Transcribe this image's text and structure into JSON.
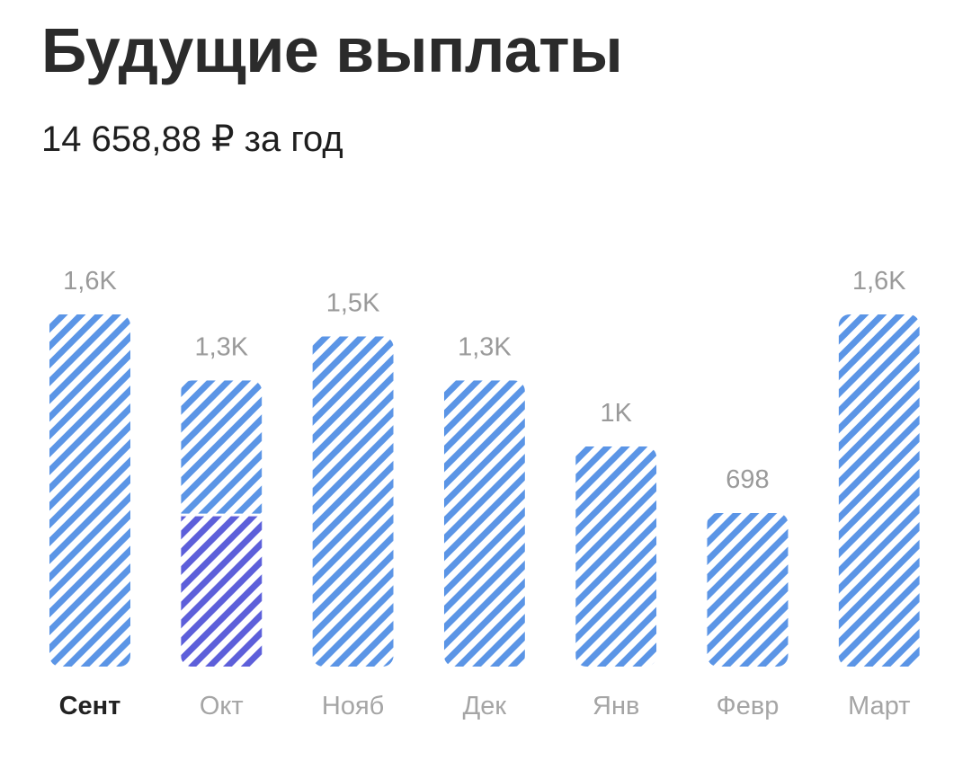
{
  "header": {
    "title": "Будущие выплаты",
    "total_label": "14 658,88 ₽ за год"
  },
  "colors": {
    "stripe_blue": "#5b95e6",
    "stripe_purple": "#5d5fda",
    "value_text": "#9a9a9a",
    "month_text": "#a5a5a5",
    "selected_month_text": "#222222"
  },
  "chart_data": {
    "type": "bar",
    "categories": [
      "Сент",
      "Окт",
      "Нояб",
      "Дек",
      "Янв",
      "Февр",
      "Март"
    ],
    "values": [
      1600,
      1300,
      1500,
      1300,
      1000,
      698,
      1600
    ],
    "value_labels": [
      "1,6K",
      "1,3K",
      "1,5K",
      "1,3K",
      "1K",
      "698",
      "1,6K"
    ],
    "highlight_portion": [
      0,
      0.53,
      0,
      0,
      0,
      0,
      0
    ],
    "selected_index": 0,
    "title": "Будущие выплаты",
    "xlabel": "",
    "ylabel": "",
    "ylim": [
      0,
      1600
    ],
    "grid": false,
    "legend": "none"
  }
}
